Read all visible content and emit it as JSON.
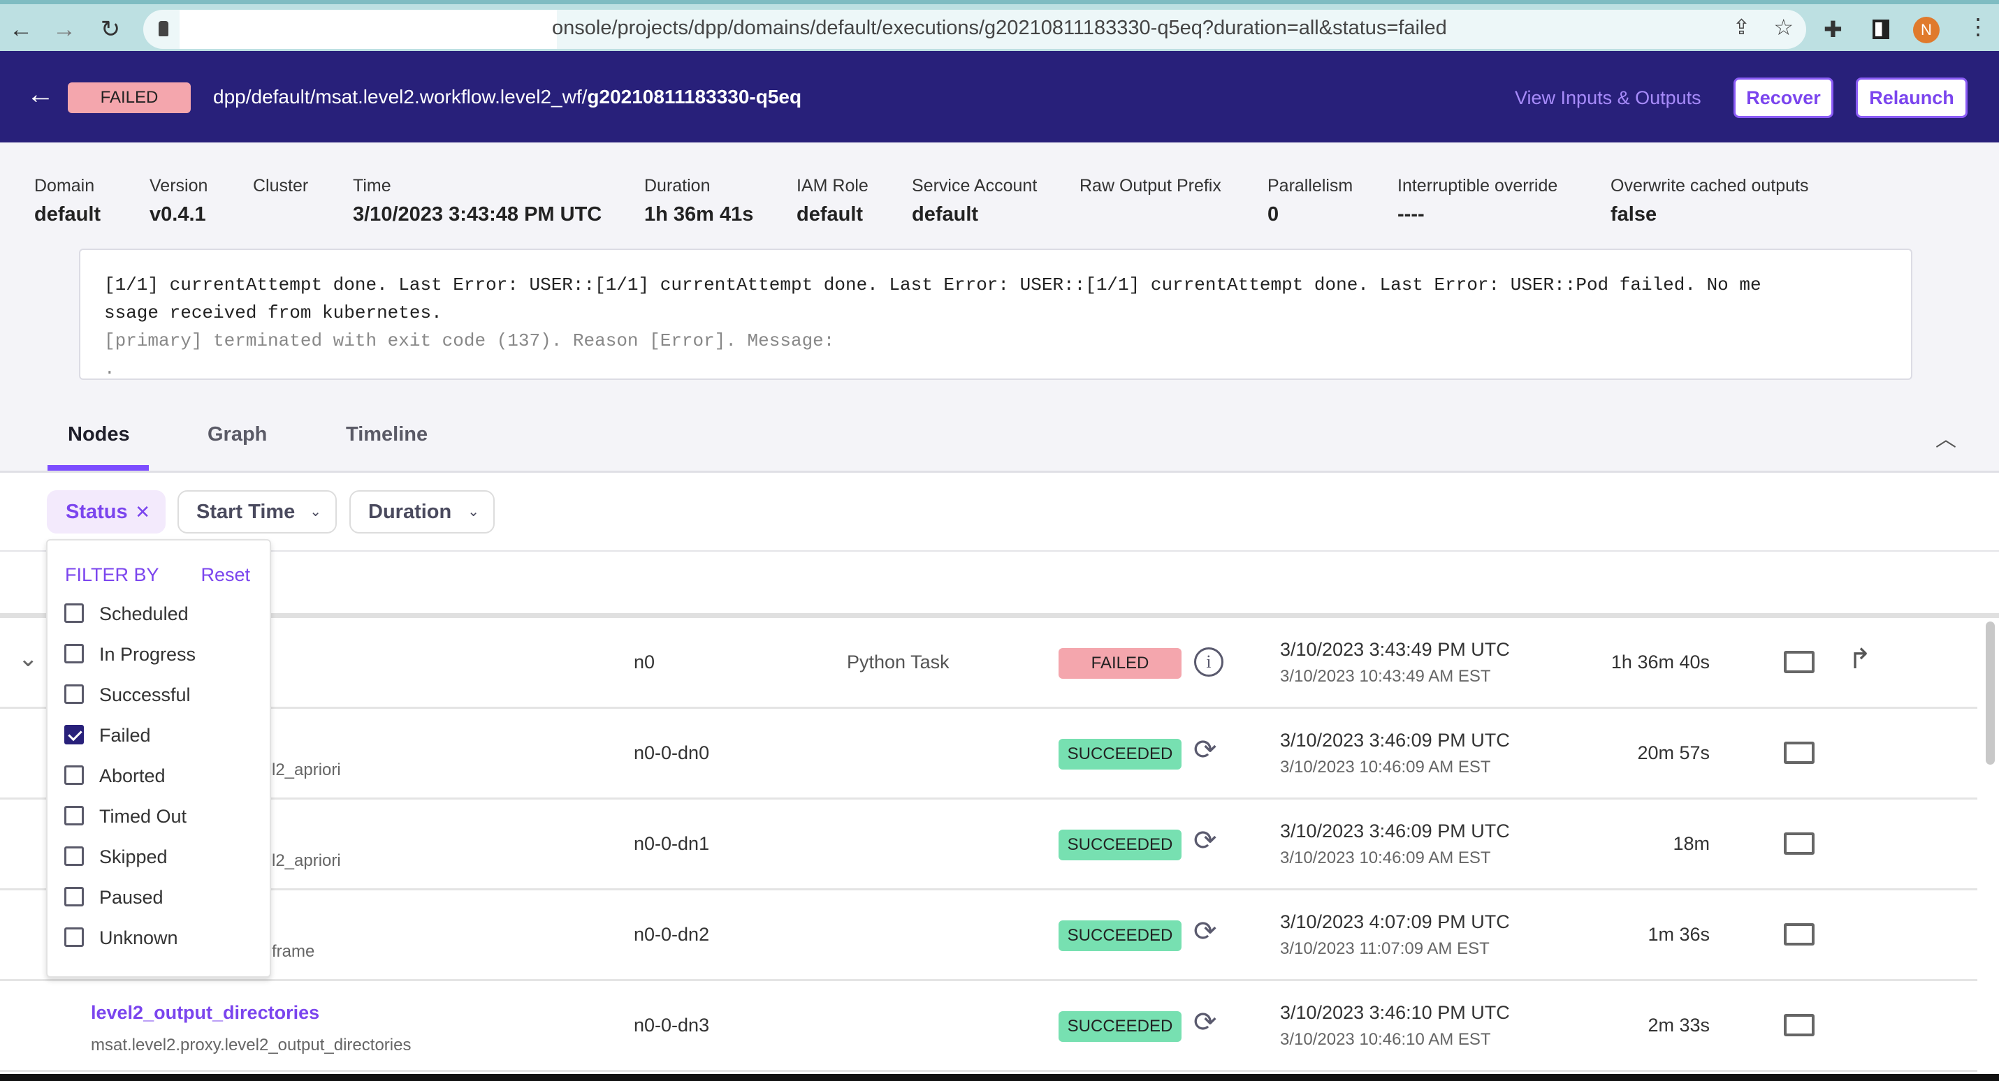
{
  "browser": {
    "url": "onsole/projects/dpp/domains/default/executions/g20210811183330-q5eq?duration=all&status=failed",
    "avatar": "N"
  },
  "header": {
    "status": "FAILED",
    "path_prefix": "dpp/default/msat.level2.workflow.level2_wf/",
    "path_id": "g20210811183330-q5eq",
    "view_io": "View Inputs & Outputs",
    "recover": "Recover",
    "relaunch": "Relaunch"
  },
  "meta": [
    {
      "label": "Domain",
      "value": "default"
    },
    {
      "label": "Version",
      "value": "v0.4.1"
    },
    {
      "label": "Cluster",
      "value": ""
    },
    {
      "label": "Time",
      "value": "3/10/2023 3:43:48 PM UTC"
    },
    {
      "label": "Duration",
      "value": "1h 36m 41s"
    },
    {
      "label": "IAM Role",
      "value": "default"
    },
    {
      "label": "Service Account",
      "value": "default"
    },
    {
      "label": "Raw Output Prefix",
      "value": ""
    },
    {
      "label": "Parallelism",
      "value": "0"
    },
    {
      "label": "Interruptible override",
      "value": "----"
    },
    {
      "label": "Overwrite cached outputs",
      "value": "false"
    }
  ],
  "error": {
    "line1": "[1/1] currentAttempt done. Last Error: USER::[1/1] currentAttempt done. Last Error: USER::[1/1] currentAttempt done. Last Error: USER::Pod failed. No me",
    "line2": "ssage received from kubernetes.",
    "line3": "[primary] terminated with exit code (137). Reason [Error]. Message:",
    "line4": "."
  },
  "tabs": {
    "nodes": "Nodes",
    "graph": "Graph",
    "timeline": "Timeline"
  },
  "filters": {
    "status": "Status",
    "start_time": "Start Time",
    "duration": "Duration"
  },
  "dropdown": {
    "title": "FILTER BY",
    "reset": "Reset",
    "options": [
      {
        "label": "Scheduled",
        "checked": false
      },
      {
        "label": "In Progress",
        "checked": false
      },
      {
        "label": "Successful",
        "checked": false
      },
      {
        "label": "Failed",
        "checked": true
      },
      {
        "label": "Aborted",
        "checked": false
      },
      {
        "label": "Timed Out",
        "checked": false
      },
      {
        "label": "Skipped",
        "checked": false
      },
      {
        "label": "Paused",
        "checked": false
      },
      {
        "label": "Unknown",
        "checked": false
      }
    ]
  },
  "rows": [
    {
      "name": "",
      "sub": "",
      "id": "n0",
      "type": "Python Task",
      "status": "FAILED",
      "utc": "3/10/2023 3:43:49 PM UTC",
      "local": "3/10/2023 10:43:49 AM EST",
      "duration": "1h 36m 40s",
      "expandable": true,
      "rerun": true
    },
    {
      "name": "",
      "sub": "l2_apriori",
      "id": "n0-0-dn0",
      "type": "",
      "status": "SUCCEEDED",
      "utc": "3/10/2023 3:46:09 PM UTC",
      "local": "3/10/2023 10:46:09 AM EST",
      "duration": "20m 57s"
    },
    {
      "name": "",
      "sub": "l2_apriori",
      "id": "n0-0-dn1",
      "type": "",
      "status": "SUCCEEDED",
      "utc": "3/10/2023 3:46:09 PM UTC",
      "local": "3/10/2023 10:46:09 AM EST",
      "duration": "18m"
    },
    {
      "name": "",
      "sub": "frame",
      "id": "n0-0-dn2",
      "type": "",
      "status": "SUCCEEDED",
      "utc": "3/10/2023 4:07:09 PM UTC",
      "local": "3/10/2023 11:07:09 AM EST",
      "duration": "1m 36s"
    },
    {
      "name": "level2_output_directories",
      "sub": "msat.level2.proxy.level2_output_directories",
      "id": "n0-0-dn3",
      "type": "",
      "status": "SUCCEEDED",
      "utc": "3/10/2023 3:46:10 PM UTC",
      "local": "3/10/2023 10:46:10 AM EST",
      "duration": "2m 33s"
    }
  ],
  "colors": {
    "header": "#28207a",
    "accent": "#7b45ee",
    "failed": "#f4a6ad",
    "succeeded": "#77e0b1"
  }
}
